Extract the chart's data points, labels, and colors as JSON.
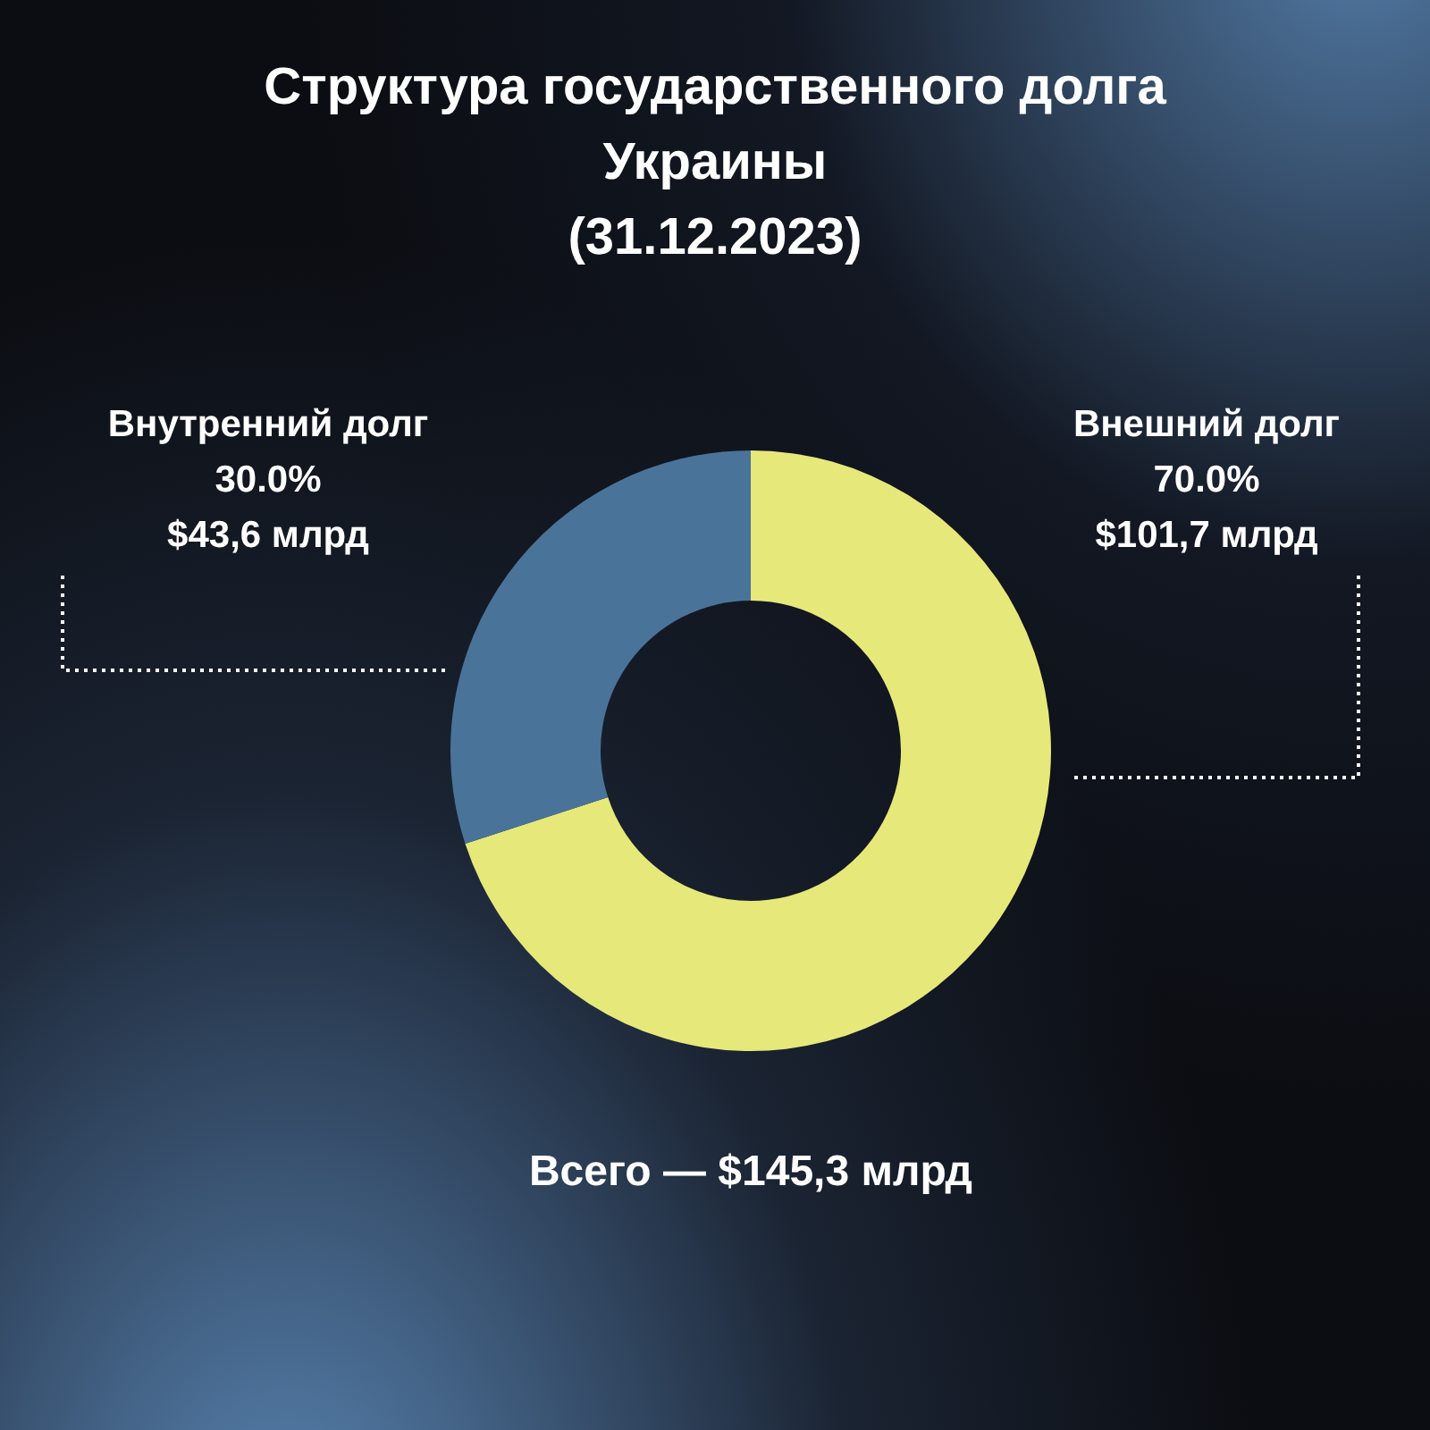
{
  "chart_data": {
    "type": "donut",
    "title": "Структура государственного долга\nУкраины\n(31.12.2023)",
    "categories": [
      "Внешний долг",
      "Внутренний долг"
    ],
    "values": [
      101.7,
      43.6
    ],
    "colors": [
      "#e6e87a",
      "#4a7399"
    ],
    "value_labels": [
      "70.0%\n$101,7 млрд",
      "30.0%\n$43,6 млрд"
    ],
    "annotations": [
      "Всего — $145,3 млрд"
    ],
    "legend": false
  }
}
